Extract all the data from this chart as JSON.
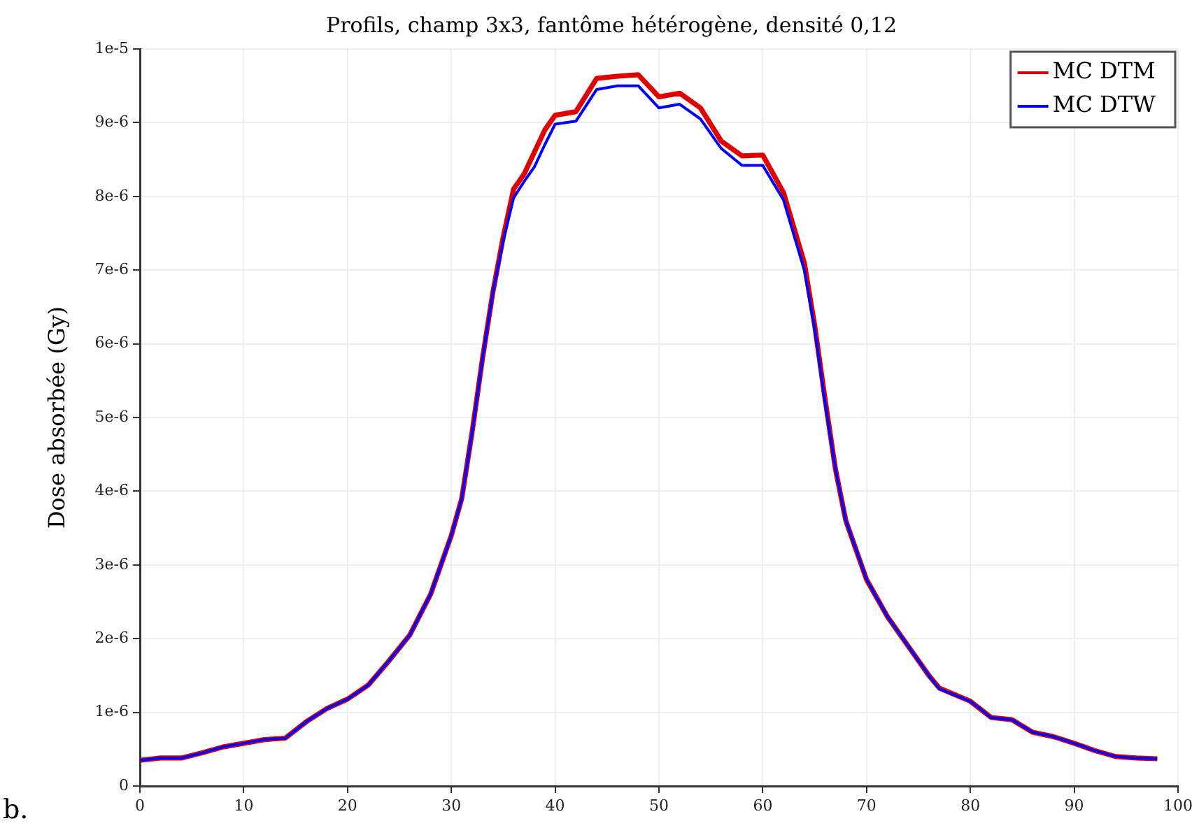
{
  "chart_data": {
    "type": "line",
    "title": "Profils, champ 3x3, fantôme hétérogène, densité 0,12",
    "ylabel": "Dose absorbée (Gy)",
    "x": [
      0,
      2,
      4,
      6,
      8,
      10,
      12,
      14,
      16,
      18,
      20,
      22,
      24,
      26,
      28,
      30,
      31,
      32,
      33,
      34,
      35,
      36,
      37,
      38,
      39,
      40,
      42,
      44,
      46,
      48,
      50,
      52,
      54,
      56,
      58,
      60,
      62,
      64,
      65,
      66,
      67,
      68,
      70,
      72,
      74,
      76,
      77,
      80,
      82,
      84,
      86,
      88,
      90,
      92,
      94,
      96,
      98
    ],
    "series": [
      {
        "name": "MC DTM",
        "color": "#e00000",
        "values": [
          3.5e-07,
          3.8e-07,
          3.8e-07,
          4.5e-07,
          5.3e-07,
          5.8e-07,
          6.3e-07,
          6.5e-07,
          8.7e-07,
          1.05e-06,
          1.18e-06,
          1.37e-06,
          1.7e-06,
          2.05e-06,
          2.6e-06,
          3.4e-06,
          3.9e-06,
          4.8e-06,
          5.8e-06,
          6.7e-06,
          7.45e-06,
          8.1e-06,
          8.3e-06,
          8.6e-06,
          8.9e-06,
          9.1e-06,
          9.15e-06,
          9.6e-06,
          9.63e-06,
          9.65e-06,
          9.35e-06,
          9.4e-06,
          9.2e-06,
          8.75e-06,
          8.55e-06,
          8.56e-06,
          8.05e-06,
          7.1e-06,
          6.25e-06,
          5.25e-06,
          4.3e-06,
          3.6e-06,
          2.8e-06,
          2.3e-06,
          1.9e-06,
          1.5e-06,
          1.33e-06,
          1.15e-06,
          9.3e-07,
          9e-07,
          7.3e-07,
          6.7e-07,
          5.8e-07,
          4.8e-07,
          4e-07,
          3.8e-07,
          3.7e-07
        ]
      },
      {
        "name": "MC DTW",
        "color": "#0000ff",
        "values": [
          3.5e-07,
          3.8e-07,
          3.8e-07,
          4.5e-07,
          5.3e-07,
          5.8e-07,
          6.3e-07,
          6.5e-07,
          8.7e-07,
          1.05e-06,
          1.18e-06,
          1.37e-06,
          1.7e-06,
          2.05e-06,
          2.6e-06,
          3.4e-06,
          3.9e-06,
          4.8e-06,
          5.8e-06,
          6.7e-06,
          7.4e-06,
          7.98e-06,
          8.2e-06,
          8.4e-06,
          8.7e-06,
          8.98e-06,
          9.02e-06,
          9.45e-06,
          9.5e-06,
          9.5e-06,
          9.2e-06,
          9.25e-06,
          9.05e-06,
          8.65e-06,
          8.42e-06,
          8.42e-06,
          7.95e-06,
          7e-06,
          6.2e-06,
          5.2e-06,
          4.3e-06,
          3.6e-06,
          2.8e-06,
          2.3e-06,
          1.9e-06,
          1.5e-06,
          1.32e-06,
          1.15e-06,
          9.3e-07,
          9e-07,
          7.3e-07,
          6.7e-07,
          5.8e-07,
          4.8e-07,
          4e-07,
          3.8e-07,
          3.7e-07
        ]
      }
    ],
    "xlim": [
      0,
      100
    ],
    "xticks": [
      0,
      10,
      20,
      30,
      40,
      50,
      60,
      70,
      80,
      90,
      100
    ],
    "ylim": [
      0,
      1e-05
    ],
    "yticks": [
      0,
      {
        "value": 1e-06,
        "label": "1e-6"
      },
      {
        "value": 2e-06,
        "label": "2e-6"
      },
      {
        "value": 3e-06,
        "label": "3e-6"
      },
      {
        "value": 4e-06,
        "label": "4e-6"
      },
      {
        "value": 5e-06,
        "label": "5e-6"
      },
      {
        "value": 6e-06,
        "label": "6e-6"
      },
      {
        "value": 7e-06,
        "label": "7e-6"
      },
      {
        "value": 8e-06,
        "label": "8e-6"
      },
      {
        "value": 9e-06,
        "label": "9e-6"
      },
      {
        "value": 1e-05,
        "label": "1e-5"
      }
    ],
    "grid": true,
    "legend": "top right",
    "marker": "none",
    "line_style": "solid",
    "annotations": [
      "b."
    ]
  }
}
